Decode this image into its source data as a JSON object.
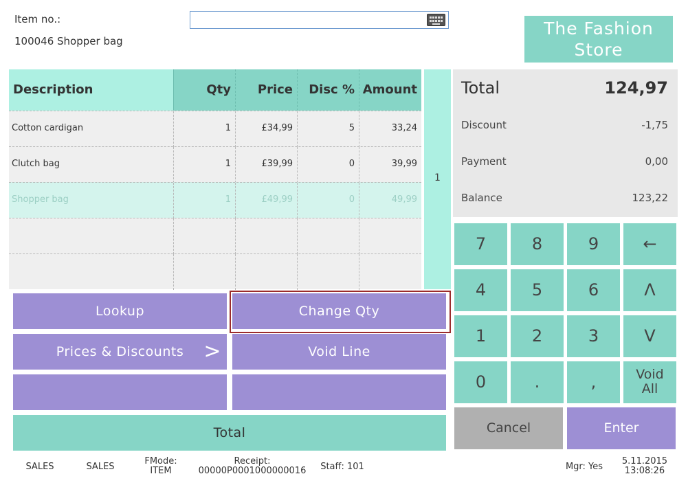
{
  "header": {
    "item_label": "Item no.:",
    "item_input_value": "",
    "current_item": "100046 Shopper bag",
    "keyboard_icon": "keyboard-icon"
  },
  "logo": {
    "line1": "The Fashion",
    "line2": "Store"
  },
  "table": {
    "columns": [
      "Description",
      "Qty",
      "Price",
      "Disc %",
      "Amount"
    ],
    "rows": [
      {
        "desc": "Cotton cardigan",
        "qty": "1",
        "price": "£34,99",
        "disc": "5",
        "amount": "33,24"
      },
      {
        "desc": "Clutch bag",
        "qty": "1",
        "price": "£39,99",
        "disc": "0",
        "amount": "39,99"
      },
      {
        "desc": "Shopper bag",
        "qty": "1",
        "price": "£49,99",
        "disc": "0",
        "amount": "49,99"
      }
    ],
    "selected_row": 2,
    "line_count": "1"
  },
  "totals": {
    "total_label": "Total",
    "total_value": "124,97",
    "discount_label": "Discount",
    "discount_value": "-1,75",
    "payment_label": "Payment",
    "payment_value": "0,00",
    "balance_label": "Balance",
    "balance_value": "123,22"
  },
  "actions": {
    "lookup": "Lookup",
    "change_qty": "Change Qty",
    "prices_discounts": "Prices & Discounts",
    "prices_arrow": ">",
    "void_line": "Void Line",
    "total": "Total"
  },
  "keypad": {
    "k7": "7",
    "k8": "8",
    "k9": "9",
    "backspace": "←",
    "k4": "4",
    "k5": "5",
    "k6": "6",
    "up": "Λ",
    "k1": "1",
    "k2": "2",
    "k3": "3",
    "down": "V",
    "k0": "0",
    "dot": ".",
    "comma": ",",
    "void_all_1": "Void",
    "void_all_2": "All",
    "cancel": "Cancel",
    "enter": "Enter"
  },
  "status": {
    "mode1": "SALES",
    "mode2": "SALES",
    "fmode_label": "FMode:",
    "fmode_value": "ITEM",
    "receipt_label": "Receipt:",
    "receipt_value": "00000P0001000000016",
    "staff": "Staff: 101",
    "mgr": "Mgr: Yes",
    "date": "5.11.2015",
    "time": "13:08:26"
  },
  "colors": {
    "teal": "#86d5c6",
    "light_teal": "#adf0e2",
    "purple": "#9d8fd4",
    "grey": "#b0b0b0",
    "highlight": "#9b2c2c"
  }
}
